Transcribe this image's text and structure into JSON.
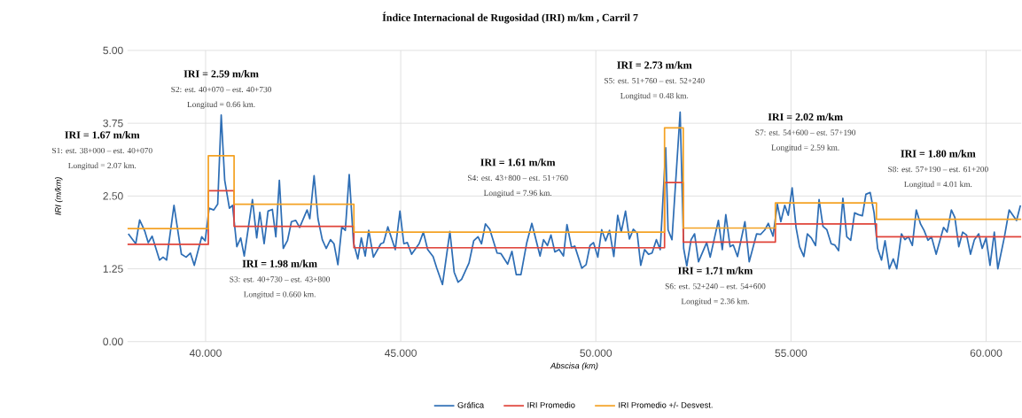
{
  "chart_data": {
    "type": "line",
    "title": "Índice Internacional de Rugosidad (IRI) m/km , Carril 7",
    "xlabel": "Abscisa (km)",
    "ylabel": "IRI (m/km)",
    "xlim": [
      38,
      60.9
    ],
    "ylim": [
      0,
      5
    ],
    "xticks": [
      {
        "value": 40,
        "label": "40.000"
      },
      {
        "value": 45,
        "label": "45.000"
      },
      {
        "value": 50,
        "label": "50.000"
      },
      {
        "value": 55,
        "label": "55.000"
      },
      {
        "value": 60,
        "label": "60.000"
      }
    ],
    "yticks": [
      {
        "value": 0,
        "label": "0.00"
      },
      {
        "value": 1.25,
        "label": "1.25"
      },
      {
        "value": 2.5,
        "label": "2.50"
      },
      {
        "value": 3.75,
        "label": "3.75"
      },
      {
        "value": 5,
        "label": "5.00"
      }
    ],
    "grid": true,
    "legend": "bottom",
    "series": [
      {
        "name": "Gráfica",
        "type": "line",
        "color": "#2e6eb5",
        "x": [
          38.02,
          38.21,
          38.31,
          38.44,
          38.53,
          38.63,
          38.82,
          38.91,
          39.0,
          39.19,
          39.38,
          39.5,
          39.61,
          39.71,
          39.9,
          39.99,
          40.09,
          40.21,
          40.31,
          40.4,
          40.49,
          40.61,
          40.69,
          40.8,
          40.9,
          40.99,
          41.2,
          41.31,
          41.39,
          41.5,
          41.6,
          41.71,
          41.8,
          41.89,
          41.99,
          42.1,
          42.2,
          42.31,
          42.41,
          42.6,
          42.67,
          42.78,
          42.88,
          42.99,
          43.09,
          43.2,
          43.29,
          43.39,
          43.49,
          43.58,
          43.68,
          43.79,
          43.9,
          43.99,
          44.09,
          44.18,
          44.3,
          44.49,
          44.56,
          44.67,
          44.86,
          44.98,
          45.08,
          45.17,
          45.28,
          45.47,
          45.58,
          45.69,
          45.83,
          45.92,
          46.07,
          46.26,
          46.37,
          46.47,
          46.56,
          46.75,
          46.87,
          46.98,
          47.07,
          47.17,
          47.28,
          47.47,
          47.57,
          47.74,
          47.85,
          47.96,
          48.08,
          48.23,
          48.36,
          48.57,
          48.66,
          48.76,
          48.85,
          48.95,
          49.06,
          49.17,
          49.26,
          49.38,
          49.46,
          49.64,
          49.75,
          49.85,
          49.94,
          50.05,
          50.15,
          50.25,
          50.35,
          50.46,
          50.56,
          50.65,
          50.76,
          50.86,
          50.96,
          51.06,
          51.15,
          51.25,
          51.35,
          51.44,
          51.55,
          51.65,
          51.79,
          51.85,
          51.95,
          52.16,
          52.25,
          52.33,
          52.44,
          52.53,
          52.63,
          52.84,
          52.93,
          53.14,
          53.24,
          53.33,
          53.44,
          53.52,
          53.63,
          53.82,
          53.93,
          54.12,
          54.22,
          54.33,
          54.42,
          54.54,
          54.65,
          54.74,
          54.84,
          54.93,
          55.03,
          55.13,
          55.22,
          55.33,
          55.42,
          55.52,
          55.63,
          55.72,
          55.82,
          55.92,
          56.03,
          56.12,
          56.22,
          56.33,
          56.43,
          56.53,
          56.63,
          56.73,
          56.83,
          56.92,
          57.03,
          57.13,
          57.22,
          57.32,
          57.41,
          57.52,
          57.62,
          57.71,
          57.83,
          57.92,
          58.01,
          58.11,
          58.21,
          58.32,
          58.41,
          58.51,
          58.6,
          58.72,
          58.91,
          59.0,
          59.11,
          59.2,
          59.3,
          59.4,
          59.5,
          59.6,
          59.7,
          59.81,
          59.9,
          60.0,
          60.1,
          60.21,
          60.3,
          60.47,
          60.59,
          60.78,
          60.88
        ],
        "values": [
          1.85,
          1.68,
          2.09,
          1.9,
          1.7,
          1.81,
          1.4,
          1.45,
          1.4,
          2.34,
          1.5,
          1.45,
          1.52,
          1.31,
          1.8,
          1.73,
          2.29,
          2.26,
          2.36,
          3.89,
          2.77,
          2.29,
          2.34,
          1.63,
          1.78,
          1.47,
          2.44,
          1.78,
          2.22,
          1.68,
          2.24,
          2.27,
          1.8,
          2.77,
          1.6,
          1.74,
          2.06,
          2.08,
          1.96,
          2.26,
          2.11,
          2.85,
          2.11,
          1.75,
          1.6,
          1.75,
          1.68,
          1.32,
          1.97,
          1.91,
          2.87,
          1.7,
          1.42,
          1.78,
          1.47,
          1.91,
          1.45,
          1.68,
          1.7,
          1.97,
          1.58,
          2.24,
          1.68,
          1.7,
          1.5,
          1.68,
          1.88,
          1.58,
          1.46,
          1.27,
          0.98,
          1.89,
          1.19,
          1.02,
          1.07,
          1.35,
          1.73,
          1.8,
          1.68,
          2.02,
          1.93,
          1.52,
          1.51,
          1.33,
          1.55,
          1.15,
          1.15,
          1.7,
          2.03,
          1.47,
          1.75,
          1.65,
          1.83,
          1.54,
          1.58,
          1.47,
          2.01,
          1.61,
          1.64,
          1.26,
          1.32,
          1.65,
          1.7,
          1.45,
          1.92,
          1.73,
          1.91,
          1.46,
          2.17,
          1.88,
          2.24,
          1.76,
          1.93,
          1.86,
          1.31,
          1.58,
          1.5,
          1.52,
          1.75,
          1.58,
          3.33,
          1.92,
          1.75,
          3.94,
          1.6,
          1.3,
          1.75,
          1.85,
          1.37,
          1.7,
          1.45,
          2.08,
          1.58,
          2.18,
          1.63,
          1.66,
          1.46,
          2.06,
          1.37,
          1.85,
          1.84,
          1.92,
          2.03,
          1.81,
          2.36,
          2.06,
          2.34,
          2.17,
          2.64,
          1.96,
          1.63,
          1.46,
          1.85,
          1.78,
          1.65,
          2.44,
          1.98,
          1.92,
          1.68,
          1.66,
          1.56,
          2.46,
          1.8,
          1.74,
          2.21,
          2.18,
          2.16,
          2.53,
          2.56,
          2.21,
          1.6,
          1.4,
          1.73,
          1.25,
          1.42,
          1.25,
          1.85,
          1.75,
          1.8,
          1.65,
          2.26,
          2.02,
          1.91,
          1.74,
          1.8,
          1.5,
          1.96,
          1.88,
          2.26,
          2.13,
          1.63,
          1.88,
          1.83,
          1.5,
          1.75,
          1.85,
          1.6,
          1.78,
          1.31,
          1.88,
          1.25,
          1.8,
          2.26,
          2.08,
          2.34
        ]
      },
      {
        "name": "IRI Promedio",
        "type": "step",
        "color": "#e0443a",
        "x": [
          38,
          40.07,
          40.73,
          43.8,
          51.76,
          52.24,
          54.6,
          57.19,
          60.9
        ],
        "values": [
          1.67,
          2.59,
          1.98,
          1.61,
          2.73,
          1.71,
          2.02,
          1.8,
          1.8
        ]
      },
      {
        "name": "IRI Promedio +/- Desvest.",
        "type": "step",
        "color": "#f4a224",
        "x": [
          38,
          40.07,
          40.73,
          43.8,
          51.76,
          52.24,
          54.6,
          57.19,
          60.9
        ],
        "values": [
          1.94,
          3.19,
          2.36,
          1.88,
          3.67,
          1.95,
          2.38,
          2.1,
          2.1
        ]
      }
    ],
    "annotations": [
      "IRI = 1.67 m/km",
      "S1: est. 38+000 – est. 40+070",
      "Longitud = 2.07 km.",
      "IRI = 2.59 m/km",
      "S2: est. 40+070 – est. 40+730",
      "Longitud = 0.66 km.",
      "IRI = 1.98 m/km",
      "S3: est. 40+730 – est. 43+800",
      "Longitud = 0.660 km.",
      "IRI = 1.61 m/km",
      "S4: est. 43+800 – est. 51+760",
      "Longitud = 7.96 km.",
      "IRI = 2.73 m/km",
      "S5: est. 51+760 – est. 52+240",
      "Longitud = 0.48 km.",
      "IRI = 1.71 m/km",
      "S6: est. 52+240 – est. 54+600",
      "Longitud = 2.36 km.",
      "IRI = 2.02 m/km",
      "S7: est. 54+600 – est. 57+190",
      "Longitud = 2.59 km.",
      "IRI = 1.80 m/km",
      "S8: est. 57+190 – est. 61+200",
      "Longitud = 4.01 km."
    ]
  }
}
